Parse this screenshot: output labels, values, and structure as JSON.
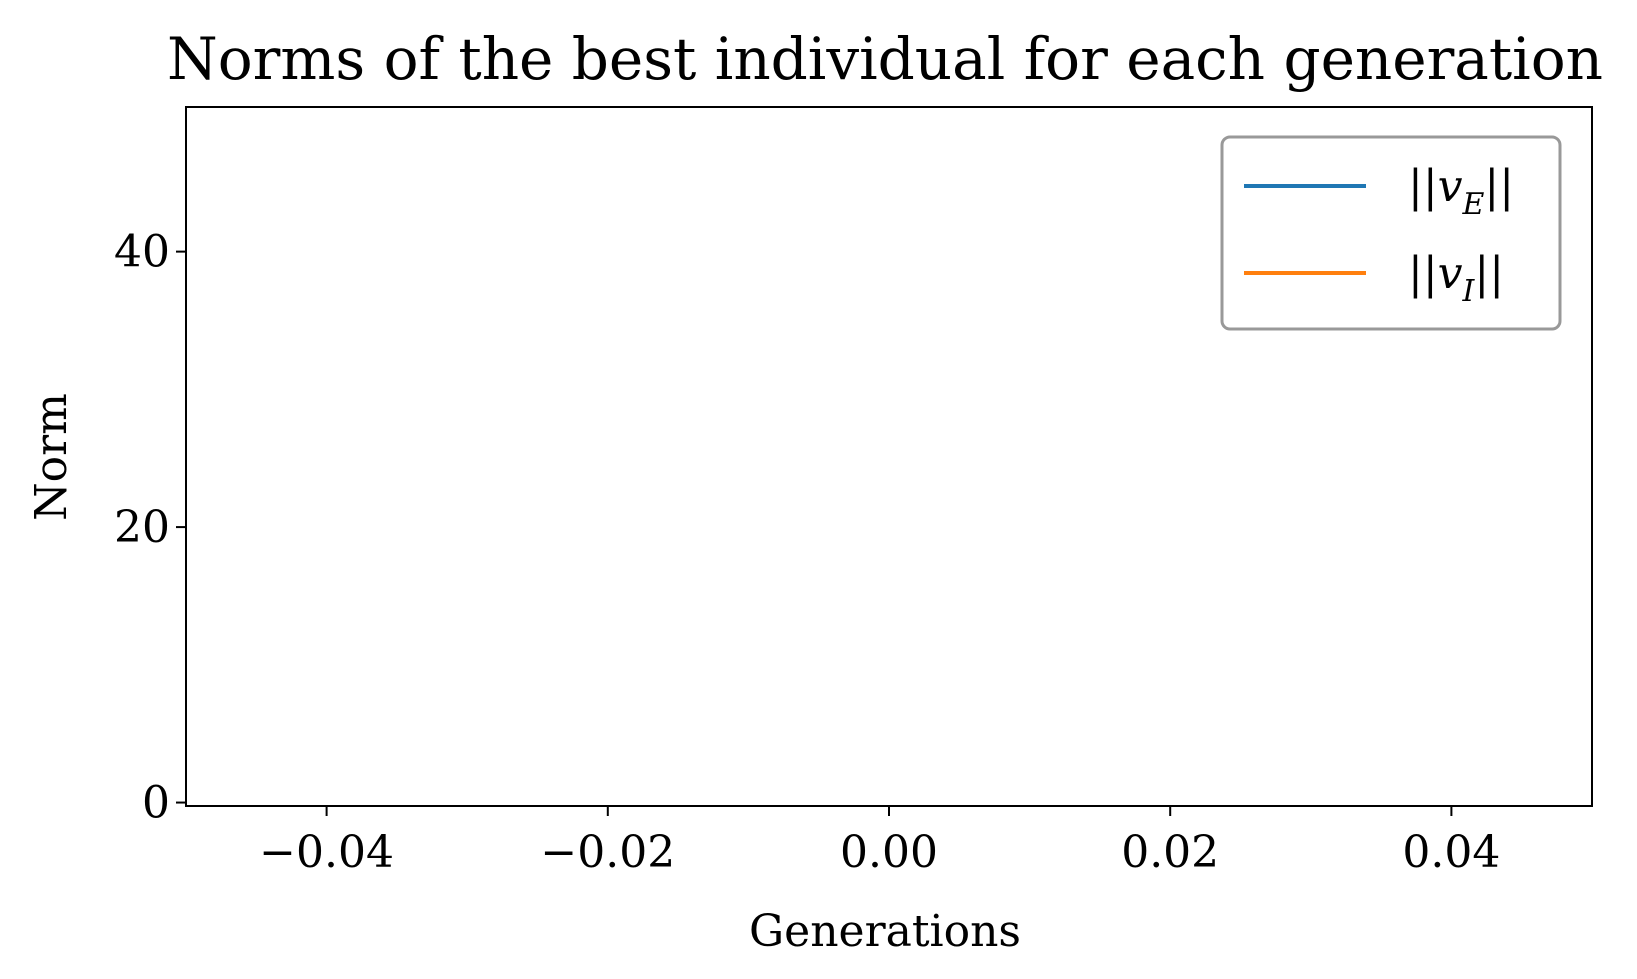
{
  "chart_data": {
    "type": "line",
    "title": "Norms of the best individual for each generation",
    "xlabel": "Generations",
    "ylabel": "Norm",
    "xlim": [
      -0.05,
      0.05
    ],
    "ylim": [
      -0.25,
      50.5
    ],
    "x_ticks": [
      {
        "value": -0.04,
        "label": "−0.04"
      },
      {
        "value": -0.02,
        "label": "−0.02"
      },
      {
        "value": 0.0,
        "label": "0.00"
      },
      {
        "value": 0.02,
        "label": "0.02"
      },
      {
        "value": 0.04,
        "label": "0.04"
      }
    ],
    "y_ticks": [
      {
        "value": 0,
        "label": "0"
      },
      {
        "value": 20,
        "label": "20"
      },
      {
        "value": 40,
        "label": "40"
      }
    ],
    "grid": false,
    "legend_position": "top-right",
    "series": [
      {
        "name": "||vE||",
        "label_main": "||v",
        "label_sub": "E",
        "label_end": "||",
        "color": "#1f77b4",
        "x": [],
        "y": []
      },
      {
        "name": "||vI||",
        "label_main": "||v",
        "label_sub": "I",
        "label_end": "||",
        "color": "#ff7f0e",
        "x": [],
        "y": []
      }
    ]
  }
}
